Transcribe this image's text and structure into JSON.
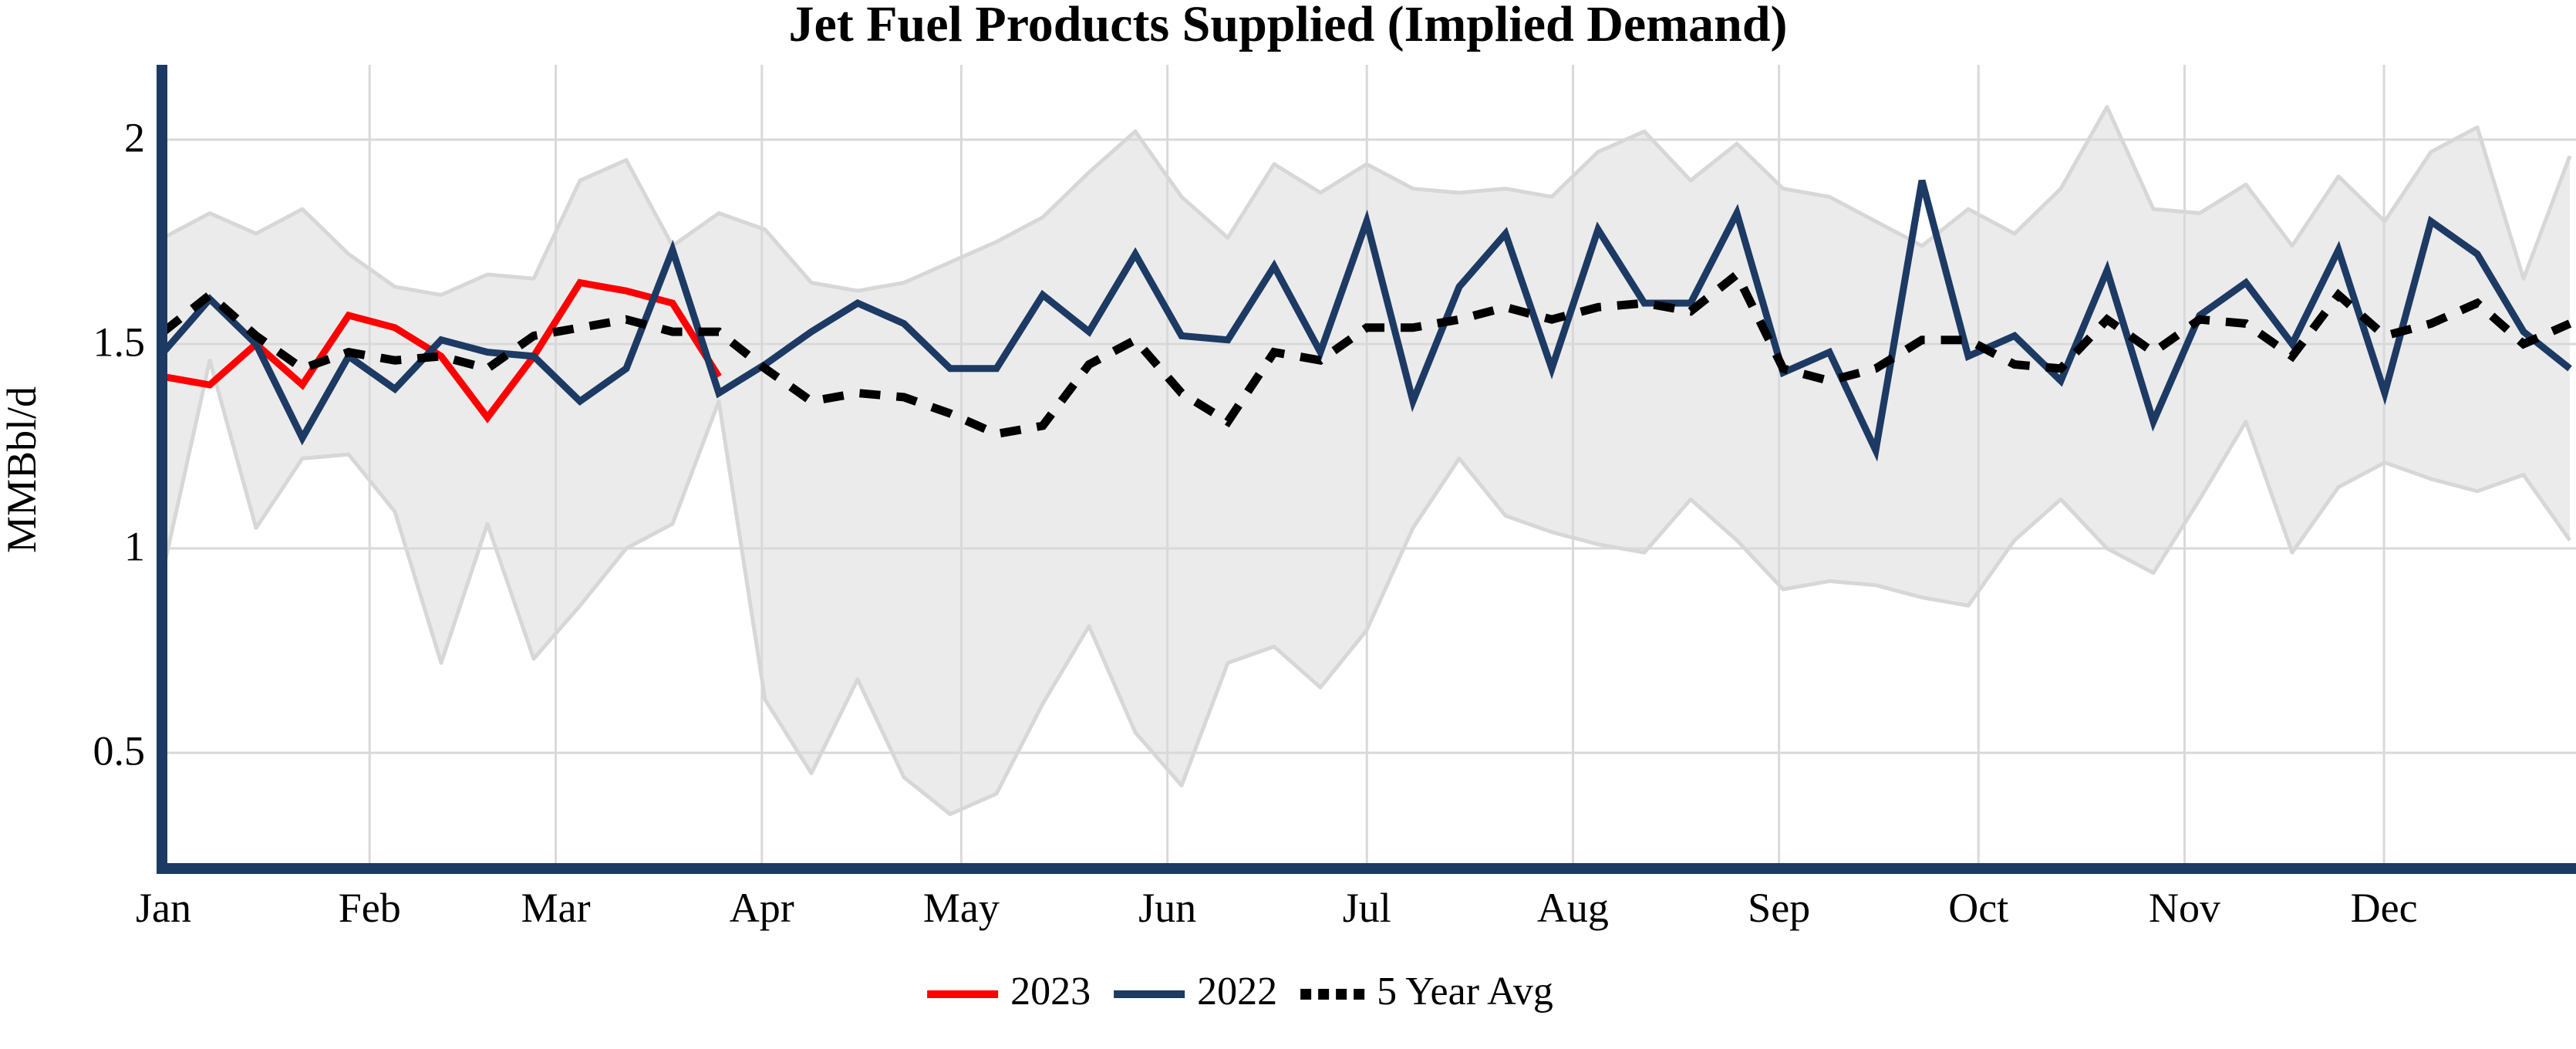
{
  "chart_data": {
    "type": "line",
    "title": "Jet Fuel Products Supplied (Implied Demand)",
    "ylabel": "MMBbl/d",
    "x_unit": "weekly (53 points, Jan–Dec)",
    "ylim": [
      0.27,
      2.18
    ],
    "grid": true,
    "legend_position": "bottom",
    "yticks": [
      {
        "label": "2",
        "value": 2.0
      },
      {
        "label": "1.5",
        "value": 1.5
      },
      {
        "label": "1",
        "value": 1.0
      },
      {
        "label": "0.5",
        "value": 0.5
      }
    ],
    "xticks": [
      {
        "label": "Jan",
        "day": 0
      },
      {
        "label": "Feb",
        "day": 31
      },
      {
        "label": "Mar",
        "day": 59
      },
      {
        "label": "Apr",
        "day": 90
      },
      {
        "label": "May",
        "day": 120
      },
      {
        "label": "Jun",
        "day": 151
      },
      {
        "label": "Jul",
        "day": 181
      },
      {
        "label": "Aug",
        "day": 212
      },
      {
        "label": "Sep",
        "day": 243
      },
      {
        "label": "Oct",
        "day": 273
      },
      {
        "label": "Nov",
        "day": 304
      },
      {
        "label": "Dec",
        "day": 334
      }
    ],
    "series": [
      {
        "name": "2023",
        "color": "#ff0000",
        "style": "solid",
        "values": [
          1.42,
          1.4,
          1.5,
          1.4,
          1.57,
          1.54,
          1.47,
          1.32,
          1.47,
          1.65,
          1.63,
          1.6,
          1.42
        ]
      },
      {
        "name": "2022",
        "color": "#1c3a63",
        "style": "solid",
        "values": [
          1.48,
          1.61,
          1.5,
          1.27,
          1.47,
          1.39,
          1.51,
          1.48,
          1.47,
          1.36,
          1.44,
          1.73,
          1.38,
          1.45,
          1.53,
          1.6,
          1.55,
          1.44,
          1.44,
          1.62,
          1.53,
          1.72,
          1.52,
          1.51,
          1.69,
          1.48,
          1.8,
          1.36,
          1.64,
          1.77,
          1.44,
          1.78,
          1.6,
          1.6,
          1.82,
          1.43,
          1.48,
          1.24,
          1.9,
          1.47,
          1.52,
          1.41,
          1.68,
          1.31,
          1.57,
          1.65,
          1.5,
          1.73,
          1.38,
          1.8,
          1.72,
          1.53,
          1.44
        ]
      },
      {
        "name": "5 Year Avg",
        "color": "#000000",
        "style": "dashed",
        "values": [
          1.53,
          1.62,
          1.52,
          1.44,
          1.48,
          1.46,
          1.47,
          1.44,
          1.52,
          1.54,
          1.56,
          1.53,
          1.53,
          1.44,
          1.36,
          1.38,
          1.37,
          1.33,
          1.28,
          1.3,
          1.45,
          1.51,
          1.38,
          1.31,
          1.48,
          1.46,
          1.54,
          1.54,
          1.56,
          1.59,
          1.56,
          1.59,
          1.6,
          1.58,
          1.67,
          1.44,
          1.41,
          1.44,
          1.51,
          1.51,
          1.45,
          1.44,
          1.56,
          1.48,
          1.56,
          1.55,
          1.47,
          1.62,
          1.52,
          1.55,
          1.6,
          1.5,
          1.55
        ]
      }
    ],
    "band": {
      "name": "5-year range",
      "fill_color": "#ebebeb",
      "edge_color": "#d7d7d7",
      "top": [
        1.76,
        1.82,
        1.77,
        1.83,
        1.72,
        1.64,
        1.62,
        1.67,
        1.66,
        1.9,
        1.95,
        1.74,
        1.82,
        1.78,
        1.65,
        1.63,
        1.65,
        1.7,
        1.75,
        1.81,
        1.92,
        2.02,
        1.86,
        1.76,
        1.94,
        1.87,
        1.94,
        1.88,
        1.87,
        1.88,
        1.86,
        1.97,
        2.02,
        1.9,
        1.99,
        1.88,
        1.86,
        1.8,
        1.74,
        1.83,
        1.77,
        1.88,
        2.08,
        1.83,
        1.82,
        1.89,
        1.74,
        1.91,
        1.8,
        1.97,
        2.03,
        1.66,
        1.96
      ],
      "bottom": [
        0.95,
        1.46,
        1.05,
        1.22,
        1.23,
        1.09,
        0.72,
        1.06,
        0.73,
        0.86,
        1.0,
        1.06,
        1.36,
        0.63,
        0.45,
        0.68,
        0.44,
        0.35,
        0.4,
        0.62,
        0.81,
        0.55,
        0.42,
        0.72,
        0.76,
        0.66,
        0.8,
        1.05,
        1.22,
        1.08,
        1.04,
        1.01,
        0.99,
        1.12,
        1.02,
        0.9,
        0.92,
        0.91,
        0.88,
        0.86,
        1.02,
        1.12,
        1.0,
        0.94,
        1.12,
        1.31,
        0.99,
        1.15,
        1.21,
        1.17,
        1.14,
        1.18,
        1.02
      ]
    },
    "colors": {
      "axis": "#1c3a63",
      "gridline": "#d9d9d9",
      "series_2023": "#ff0000",
      "series_2022": "#1c3a63",
      "series_avg": "#000000"
    },
    "legend": [
      "2023",
      "2022",
      "5 Year Avg"
    ]
  }
}
